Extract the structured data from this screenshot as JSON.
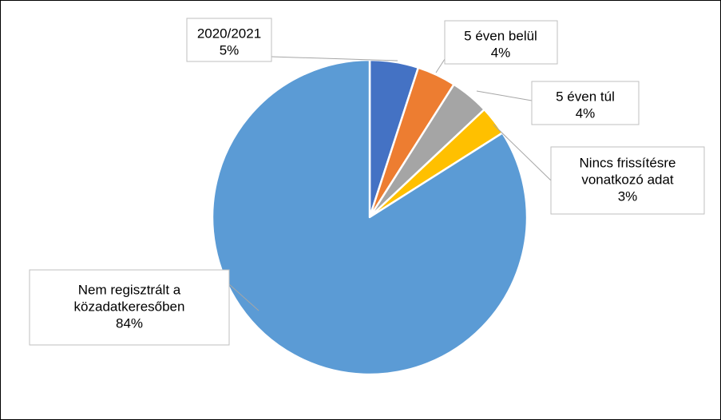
{
  "chart_data": {
    "type": "pie",
    "title": "",
    "legend": "none",
    "start_angle_deg": 0,
    "direction": "clockwise",
    "slices": [
      {
        "label": [
          "2020/2021"
        ],
        "percent_label": "5%",
        "value": 5,
        "color": "#4472c4"
      },
      {
        "label": [
          "5 éven belül"
        ],
        "percent_label": "4%",
        "value": 4,
        "color": "#ed7d31"
      },
      {
        "label": [
          "5 éven túl"
        ],
        "percent_label": "4%",
        "value": 4,
        "color": "#a5a5a5"
      },
      {
        "label": [
          "Nincs frissítésre",
          "vonatkozó adat"
        ],
        "percent_label": "3%",
        "value": 3,
        "color": "#ffc000"
      },
      {
        "label": [
          "Nem regisztrált a",
          "közadatkeresőben"
        ],
        "percent_label": "84%",
        "value": 84,
        "color": "#5b9bd5"
      }
    ]
  }
}
